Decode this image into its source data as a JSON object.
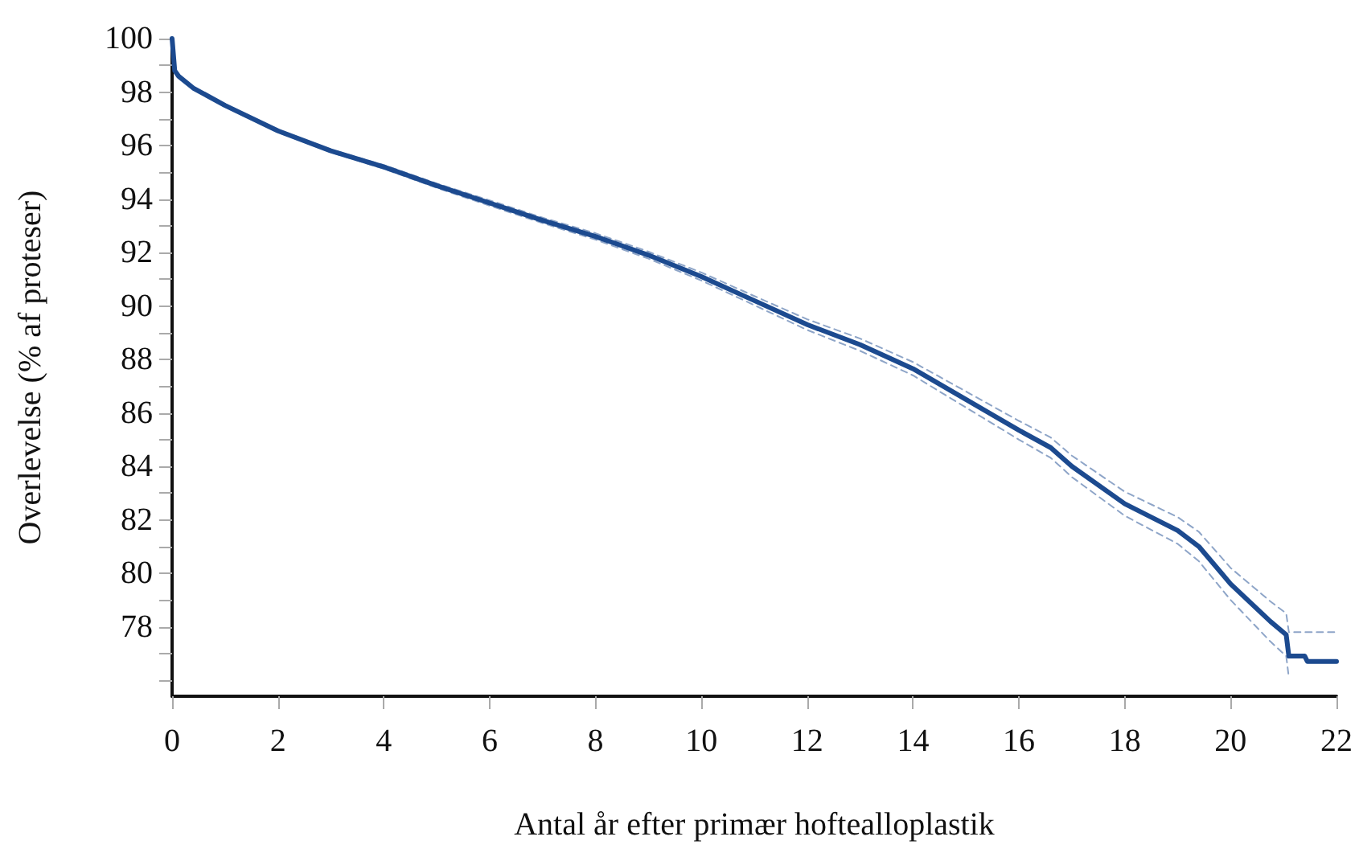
{
  "chart_data": {
    "type": "line",
    "xlabel": "Antal år efter primær hoftealloplastik",
    "ylabel": "Overlevelse (% af proteser)",
    "xlim": [
      0,
      22
    ],
    "xticks": [
      0,
      2,
      4,
      6,
      8,
      10,
      12,
      14,
      16,
      18,
      20,
      22
    ],
    "ylim": [
      75.4,
      100
    ],
    "yticks": [
      {
        "value": 76,
        "label": null
      },
      {
        "value": 77,
        "label": null
      },
      78,
      {
        "value": 79,
        "label": null
      },
      80,
      {
        "value": 81,
        "label": null
      },
      82,
      {
        "value": 83,
        "label": null
      },
      84,
      {
        "value": 85,
        "label": null
      },
      86,
      {
        "value": 87,
        "label": null
      },
      88,
      {
        "value": 89,
        "label": null
      },
      90,
      {
        "value": 91,
        "label": null
      },
      92,
      {
        "value": 93,
        "label": null
      },
      94,
      {
        "value": 95,
        "label": null
      },
      96,
      {
        "value": 97,
        "label": null
      },
      98,
      {
        "value": 99,
        "label": null
      },
      100
    ],
    "grid": false,
    "marker": "none",
    "line_style": "solid",
    "series": [
      {
        "color": "#1c4a8f",
        "x": [
          0,
          0.05,
          0.12,
          0.4,
          1,
          2,
          3,
          4,
          5,
          6,
          7,
          8,
          9,
          10,
          11,
          12,
          13,
          14,
          15,
          16,
          16.6,
          17,
          18,
          19,
          19.4,
          20,
          20.75,
          21.05,
          21.1,
          21.4,
          21.45,
          22
        ],
        "values": [
          100,
          98.8,
          98.6,
          98.15,
          97.5,
          96.55,
          95.8,
          95.2,
          94.5,
          93.85,
          93.2,
          92.6,
          91.9,
          91.1,
          90.2,
          89.3,
          88.55,
          87.65,
          86.5,
          85.35,
          84.7,
          84.0,
          82.6,
          81.6,
          81.0,
          79.6,
          78.2,
          77.7,
          76.9,
          76.9,
          76.7,
          76.7
        ]
      },
      {
        "color": "#8ea5c8",
        "line_style": "dashed",
        "x": [
          0,
          0.05,
          0.12,
          0.4,
          1,
          2,
          3,
          4,
          5,
          6,
          7,
          8,
          9,
          10,
          11,
          12,
          13,
          14,
          15,
          16,
          16.6,
          17,
          18,
          19,
          19.4,
          20,
          20.75,
          21.05,
          21.1,
          22
        ],
        "values": [
          100,
          98.85,
          98.65,
          98.2,
          97.55,
          96.6,
          95.85,
          95.27,
          94.58,
          93.95,
          93.3,
          92.72,
          92.03,
          91.25,
          90.37,
          89.5,
          88.78,
          87.9,
          86.8,
          85.7,
          85.08,
          84.4,
          83.05,
          82.1,
          81.55,
          80.2,
          78.95,
          78.5,
          77.8,
          77.8
        ]
      },
      {
        "color": "#8ea5c8",
        "line_style": "dashed",
        "x": [
          0,
          0.05,
          0.12,
          0.4,
          1,
          2,
          3,
          4,
          5,
          6,
          7,
          8,
          9,
          10,
          11,
          12,
          13,
          14,
          15,
          16,
          16.6,
          17,
          18,
          19,
          19.4,
          20,
          20.75,
          21.05,
          21.1
        ],
        "values": [
          100,
          98.75,
          98.55,
          98.1,
          97.45,
          96.5,
          95.75,
          95.13,
          94.42,
          93.75,
          93.1,
          92.48,
          91.77,
          90.95,
          90.03,
          89.1,
          88.32,
          87.4,
          86.2,
          85.0,
          84.32,
          83.6,
          82.15,
          81.1,
          80.45,
          79.0,
          77.45,
          76.9,
          76.1
        ]
      }
    ]
  }
}
